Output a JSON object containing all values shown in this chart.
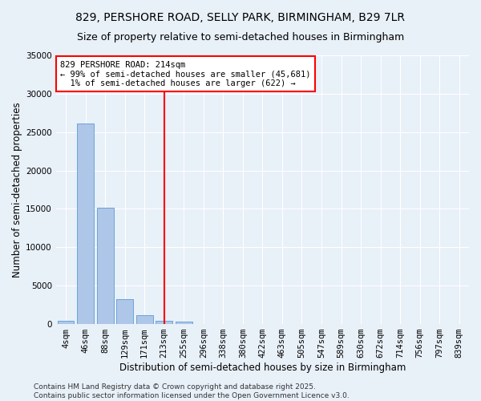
{
  "title_line1": "829, PERSHORE ROAD, SELLY PARK, BIRMINGHAM, B29 7LR",
  "title_line2": "Size of property relative to semi-detached houses in Birmingham",
  "xlabel": "Distribution of semi-detached houses by size in Birmingham",
  "ylabel": "Number of semi-detached properties",
  "categories": [
    "4sqm",
    "46sqm",
    "88sqm",
    "129sqm",
    "171sqm",
    "213sqm",
    "255sqm",
    "296sqm",
    "338sqm",
    "380sqm",
    "422sqm",
    "463sqm",
    "505sqm",
    "547sqm",
    "589sqm",
    "630sqm",
    "672sqm",
    "714sqm",
    "756sqm",
    "797sqm",
    "839sqm"
  ],
  "values": [
    400,
    26100,
    15200,
    3200,
    1200,
    400,
    300,
    0,
    0,
    0,
    0,
    0,
    0,
    0,
    0,
    0,
    0,
    0,
    0,
    0,
    0
  ],
  "bar_color": "#aec6e8",
  "bar_edge_color": "#5b9bd5",
  "vline_x_index": 5,
  "vline_color": "red",
  "annotation_line1": "829 PERSHORE ROAD: 214sqm",
  "annotation_line2": "← 99% of semi-detached houses are smaller (45,681)",
  "annotation_line3": "  1% of semi-detached houses are larger (622) →",
  "annotation_box_color": "white",
  "annotation_box_edge_color": "red",
  "ylim": [
    0,
    35000
  ],
  "yticks": [
    0,
    5000,
    10000,
    15000,
    20000,
    25000,
    30000,
    35000
  ],
  "bg_color": "#e8f0f8",
  "footer_text": "Contains HM Land Registry data © Crown copyright and database right 2025.\nContains public sector information licensed under the Open Government Licence v3.0.",
  "title_fontsize": 10,
  "subtitle_fontsize": 9,
  "axis_label_fontsize": 8.5,
  "tick_fontsize": 7.5,
  "annotation_fontsize": 7.5,
  "footer_fontsize": 6.5
}
